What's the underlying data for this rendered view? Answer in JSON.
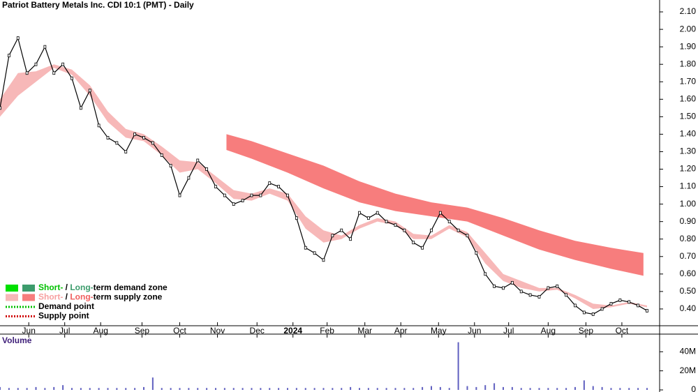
{
  "chart_data": [
    {
      "type": "line",
      "title": "Patriot Battery Metals Inc. CDI 10:1 (PMT) - Daily",
      "xlim": [
        0,
        367
      ],
      "xticks": [
        {
          "value": 16,
          "label": "Jun"
        },
        {
          "value": 36,
          "label": "Jul"
        },
        {
          "value": 56,
          "label": "Aug"
        },
        {
          "value": 79,
          "label": "Sep"
        },
        {
          "value": 100,
          "label": "Oct"
        },
        {
          "value": 121,
          "label": "Nov"
        },
        {
          "value": 143,
          "label": "Dec"
        },
        {
          "value": 163,
          "label": "2024"
        },
        {
          "value": 182,
          "label": "Feb"
        },
        {
          "value": 203,
          "label": "Mar"
        },
        {
          "value": 223,
          "label": "Apr"
        },
        {
          "value": 244,
          "label": "May"
        },
        {
          "value": 264,
          "label": "Jun"
        },
        {
          "value": 283,
          "label": "Jul"
        },
        {
          "value": 305,
          "label": "Aug"
        },
        {
          "value": 326,
          "label": "Sep"
        },
        {
          "value": 346,
          "label": "Oct"
        }
      ],
      "ylim": [
        0.304,
        2.168
      ],
      "yticks": [
        {
          "value": 0.4,
          "label": "0.40"
        },
        {
          "value": 0.5,
          "label": "0.50"
        },
        {
          "value": 0.6,
          "label": "0.60"
        },
        {
          "value": 0.7,
          "label": "0.70"
        },
        {
          "value": 0.8,
          "label": "0.80"
        },
        {
          "value": 0.9,
          "label": "0.90"
        },
        {
          "value": 1.0,
          "label": "1.00"
        },
        {
          "value": 1.1,
          "label": "1.10"
        },
        {
          "value": 1.2,
          "label": "1.20"
        },
        {
          "value": 1.3,
          "label": "1.30"
        },
        {
          "value": 1.4,
          "label": "1.40"
        },
        {
          "value": 1.5,
          "label": "1.50"
        },
        {
          "value": 1.6,
          "label": "1.60"
        },
        {
          "value": 1.7,
          "label": "1.70"
        },
        {
          "value": 1.8,
          "label": "1.80"
        },
        {
          "value": 1.9,
          "label": "1.90"
        },
        {
          "value": 2.0,
          "label": "2.00"
        },
        {
          "value": 2.1,
          "label": "2.10"
        }
      ],
      "x": [
        0,
        5,
        10,
        15,
        20,
        25,
        30,
        35,
        40,
        45,
        50,
        55,
        60,
        65,
        70,
        75,
        80,
        85,
        90,
        95,
        100,
        105,
        110,
        115,
        120,
        125,
        130,
        135,
        140,
        145,
        150,
        155,
        160,
        165,
        170,
        175,
        180,
        185,
        190,
        195,
        200,
        205,
        210,
        215,
        220,
        225,
        230,
        235,
        240,
        245,
        250,
        255,
        260,
        265,
        270,
        275,
        280,
        285,
        290,
        295,
        300,
        305,
        310,
        315,
        320,
        325,
        330,
        335,
        340,
        345,
        350,
        355,
        360
      ],
      "series": [
        {
          "color": "#000000",
          "values": [
            1.55,
            1.85,
            1.95,
            1.75,
            1.8,
            1.9,
            1.75,
            1.8,
            1.72,
            1.55,
            1.65,
            1.45,
            1.38,
            1.35,
            1.3,
            1.4,
            1.38,
            1.35,
            1.28,
            1.22,
            1.05,
            1.15,
            1.25,
            1.2,
            1.1,
            1.05,
            1.0,
            1.02,
            1.05,
            1.05,
            1.12,
            1.1,
            1.05,
            0.92,
            0.75,
            0.72,
            0.68,
            0.82,
            0.85,
            0.8,
            0.95,
            0.92,
            0.95,
            0.9,
            0.88,
            0.85,
            0.78,
            0.75,
            0.85,
            0.95,
            0.9,
            0.85,
            0.82,
            0.72,
            0.6,
            0.53,
            0.52,
            0.55,
            0.5,
            0.48,
            0.47,
            0.52,
            0.53,
            0.48,
            0.42,
            0.38,
            0.37,
            0.4,
            0.43,
            0.45,
            0.44,
            0.42,
            0.39
          ]
        }
      ],
      "zones": [
        {
          "color": "#f7b8b8",
          "x": [
            0,
            10,
            20,
            30,
            40,
            50,
            60,
            70,
            80,
            90,
            100,
            110,
            120,
            130,
            140,
            150,
            160,
            170,
            180,
            190,
            200,
            210,
            220,
            230,
            240,
            250,
            260,
            270,
            280,
            290,
            300,
            310,
            320,
            330,
            340,
            350,
            360
          ],
          "upper": [
            1.6,
            1.75,
            1.76,
            1.8,
            1.77,
            1.68,
            1.53,
            1.43,
            1.4,
            1.33,
            1.25,
            1.24,
            1.16,
            1.08,
            1.06,
            1.09,
            1.06,
            0.93,
            0.85,
            0.82,
            0.88,
            0.92,
            0.9,
            0.83,
            0.82,
            0.88,
            0.84,
            0.72,
            0.6,
            0.56,
            0.52,
            0.52,
            0.48,
            0.43,
            0.42,
            0.44,
            0.42
          ],
          "lower": [
            1.5,
            1.62,
            1.7,
            1.78,
            1.74,
            1.62,
            1.47,
            1.38,
            1.36,
            1.28,
            1.18,
            1.2,
            1.12,
            1.03,
            1.02,
            1.06,
            1.02,
            0.86,
            0.78,
            0.8,
            0.86,
            0.9,
            0.88,
            0.8,
            0.8,
            0.86,
            0.81,
            0.66,
            0.56,
            0.52,
            0.5,
            0.51,
            0.46,
            0.4,
            0.41,
            0.43,
            0.41
          ]
        },
        {
          "color": "#f77d7d",
          "x": [
            126,
            140,
            160,
            180,
            200,
            220,
            240,
            260,
            280,
            300,
            320,
            340,
            358
          ],
          "upper": [
            1.4,
            1.36,
            1.29,
            1.22,
            1.13,
            1.06,
            1.01,
            0.98,
            0.92,
            0.85,
            0.79,
            0.75,
            0.72
          ],
          "lower": [
            1.31,
            1.26,
            1.18,
            1.09,
            1.01,
            0.96,
            0.93,
            0.9,
            0.82,
            0.74,
            0.68,
            0.63,
            0.59
          ]
        }
      ],
      "legend": [
        {
          "colors": [
            "#00e000",
            "#3c9c6c"
          ],
          "parts": [
            {
              "text": "Short-",
              "color": "#00c000"
            },
            {
              "text": " / ",
              "color": "#000000"
            },
            {
              "text": "Long-",
              "color": "#3c9c6c"
            },
            {
              "text": "term demand zone",
              "color": "#000000"
            }
          ]
        },
        {
          "colors": [
            "#f7b8b8",
            "#f77d7d"
          ],
          "parts": [
            {
              "text": "Short-",
              "color": "#f7a0a0"
            },
            {
              "text": " / ",
              "color": "#000000"
            },
            {
              "text": "Long-",
              "color": "#f06060"
            },
            {
              "text": "term supply zone",
              "color": "#000000"
            }
          ]
        },
        {
          "dotted": "#00c000",
          "parts": [
            {
              "text": "Demand point",
              "color": "#000000"
            }
          ]
        },
        {
          "dotted": "#d00000",
          "parts": [
            {
              "text": "Supply point",
              "color": "#000000"
            }
          ]
        }
      ]
    },
    {
      "type": "bar",
      "title": "Volume",
      "color": "#6060c0",
      "ylim": [
        0,
        58.5
      ],
      "yticks": [
        0,
        {
          "value": 20,
          "label": "20M"
        },
        {
          "value": 40,
          "label": "40M"
        }
      ],
      "x": [
        0,
        5,
        10,
        15,
        20,
        25,
        30,
        35,
        40,
        45,
        50,
        55,
        60,
        65,
        70,
        75,
        80,
        85,
        90,
        95,
        100,
        105,
        110,
        115,
        120,
        125,
        130,
        135,
        140,
        145,
        150,
        155,
        160,
        165,
        170,
        175,
        180,
        185,
        190,
        195,
        200,
        205,
        210,
        215,
        220,
        225,
        230,
        235,
        240,
        245,
        250,
        255,
        260,
        265,
        270,
        275,
        280,
        285,
        290,
        295,
        300,
        305,
        310,
        315,
        320,
        325,
        330,
        335,
        340,
        345,
        350,
        355,
        360
      ],
      "values": [
        3,
        2,
        2,
        2,
        3,
        2,
        3,
        5,
        2,
        2,
        2,
        2,
        2,
        2,
        2,
        2,
        3,
        13,
        2,
        2,
        2,
        2,
        2,
        2,
        2,
        2,
        2,
        2,
        2,
        2,
        2,
        2,
        2,
        2,
        2,
        2,
        2,
        2,
        2,
        3,
        2,
        2,
        2,
        2,
        2,
        2,
        2,
        3,
        4,
        3,
        2,
        50,
        4,
        3,
        5,
        7,
        3,
        3,
        2,
        2,
        2,
        2,
        2,
        2,
        3,
        10,
        4,
        3,
        2,
        2,
        2,
        2,
        2
      ]
    }
  ]
}
